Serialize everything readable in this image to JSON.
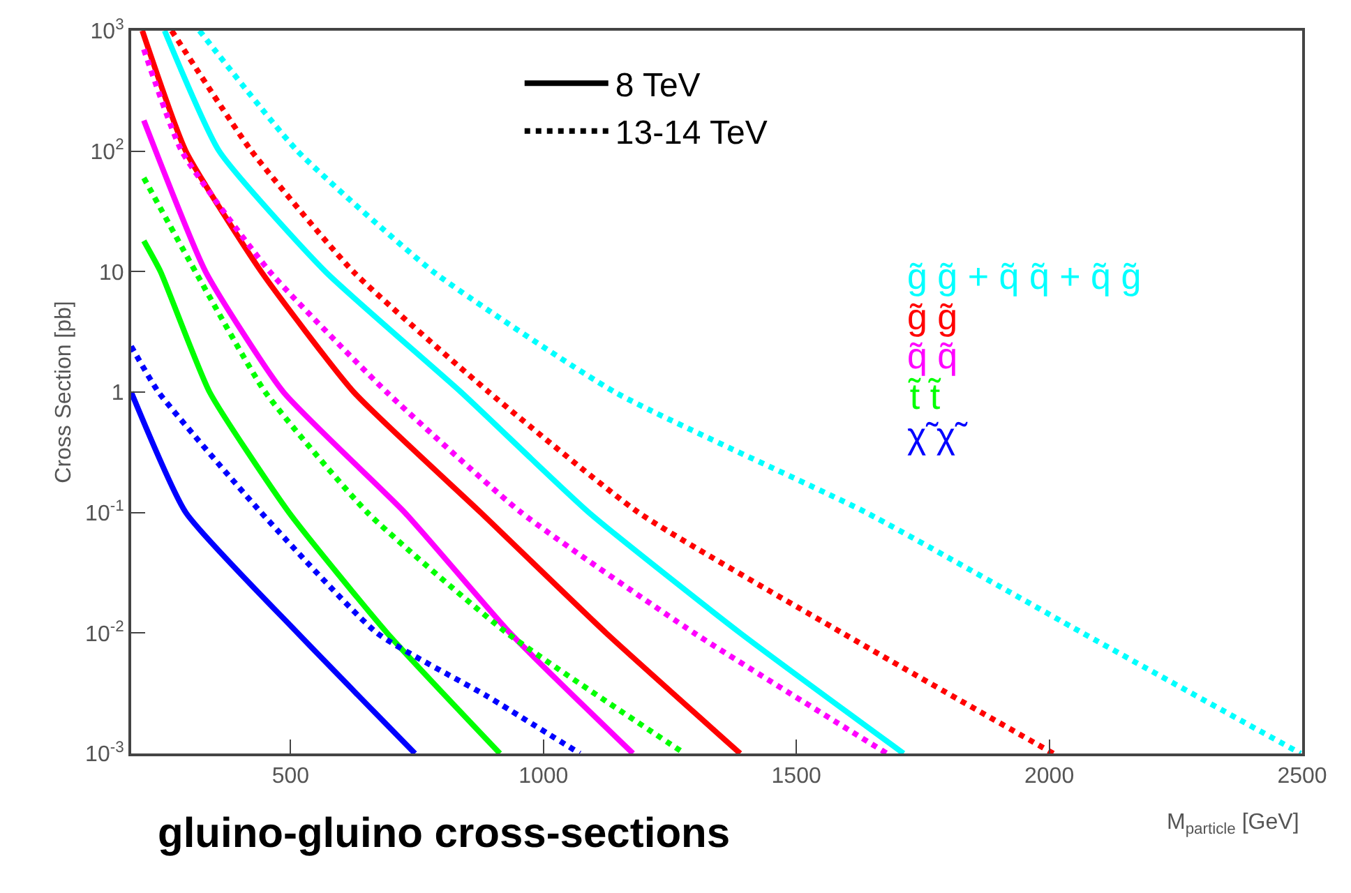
{
  "chart_data": {
    "type": "line",
    "xlabel": "M$_{particle}$ [GeV]",
    "ylabel": "Cross Section [pb]",
    "annotations": [
      "gluino-gluino cross-sections"
    ],
    "log": "y",
    "legend": "top",
    "marker": "none",
    "xlim": [
      185,
      2500
    ],
    "xticks": [
      500,
      1000,
      1500,
      2000,
      2500
    ],
    "ylim": [
      0.001,
      1000
    ],
    "yticks": [
      {
        "value": 0.001,
        "label": "10$^{-3}$"
      },
      {
        "value": 0.01,
        "label": "10$^{-2}$"
      },
      {
        "value": 0.1,
        "label": "10$^{-1}$"
      },
      1,
      10,
      {
        "value": 100,
        "label": "10$^{2}$"
      },
      {
        "value": 1000,
        "label": "10$^{3}$"
      }
    ],
    "series": [
      {
        "name": "8 TeV",
        "color": "#000000",
        "line_style": "solid"
      },
      {
        "name": "13-14 TeV",
        "color": "#000000",
        "line_style": "dotted"
      },
      {
        "name": "g̃ g̃ + q̃ q̃ + q̃ g̃",
        "color": "#00ffff",
        "line_style": "solid",
        "x": [
          251,
          359,
          569,
          837,
          1090,
          1389,
          1712
        ],
        "values": [
          1000,
          100,
          10,
          1,
          0.1,
          0.01,
          0.001
        ]
      },
      {
        "color": "#00ffff",
        "line_style": "dotted",
        "x": [
          320,
          514,
          782,
          1141,
          1638,
          2066,
          2497
        ],
        "values": [
          1000,
          100,
          10,
          1,
          0.1,
          0.01,
          0.001
        ]
      },
      {
        "name": "g̃ g̃",
        "color": "#ff0000",
        "line_style": "solid",
        "x": [
          207,
          293,
          442,
          625,
          876,
          1124,
          1389
        ],
        "values": [
          1000,
          100,
          10,
          1,
          0.1,
          0.01,
          0.001
        ]
      },
      {
        "color": "#ff0000",
        "line_style": "dotted",
        "x": [
          265,
          423,
          624,
          892,
          1188,
          1591,
          2008
        ],
        "values": [
          1000,
          100,
          10,
          1,
          0.1,
          0.01,
          0.001
        ]
      },
      {
        "name": "q̃ q̃",
        "color": "#ff00ff",
        "line_style": "solid",
        "x": [
          210,
          332,
          486,
          726,
          934,
          1177
        ],
        "values": [
          180,
          10,
          1,
          0.1,
          0.01,
          0.001
        ]
      },
      {
        "color": "#ff00ff",
        "line_style": "dotted",
        "x": [
          210,
          285,
          459,
          690,
          956,
          1298,
          1679
        ],
        "values": [
          700,
          100,
          10,
          1,
          0.1,
          0.01,
          0.001
        ]
      },
      {
        "name": "t̃ t̃",
        "color": "#00ff00",
        "line_style": "solid",
        "x": [
          210,
          243,
          340,
          497,
          691,
          914
        ],
        "values": [
          18,
          10,
          1,
          0.1,
          0.01,
          0.001
        ]
      },
      {
        "color": "#00ff00",
        "line_style": "dotted",
        "x": [
          210,
          312,
          450,
          652,
          928,
          1279
        ],
        "values": [
          60,
          10,
          1,
          0.1,
          0.01,
          0.001
        ]
      },
      {
        "name": "χ̃ χ̃",
        "color": "#0000ff",
        "line_style": "solid",
        "x": [
          185,
          293,
          514,
          746
        ],
        "values": [
          1,
          0.1,
          0.01,
          0.001
        ]
      },
      {
        "color": "#0000ff",
        "line_style": "dotted",
        "x": [
          185,
          239,
          442,
          671,
          888,
          1072
        ],
        "values": [
          2.4,
          1,
          0.1,
          0.01,
          0.003,
          0.001
        ]
      }
    ]
  }
}
